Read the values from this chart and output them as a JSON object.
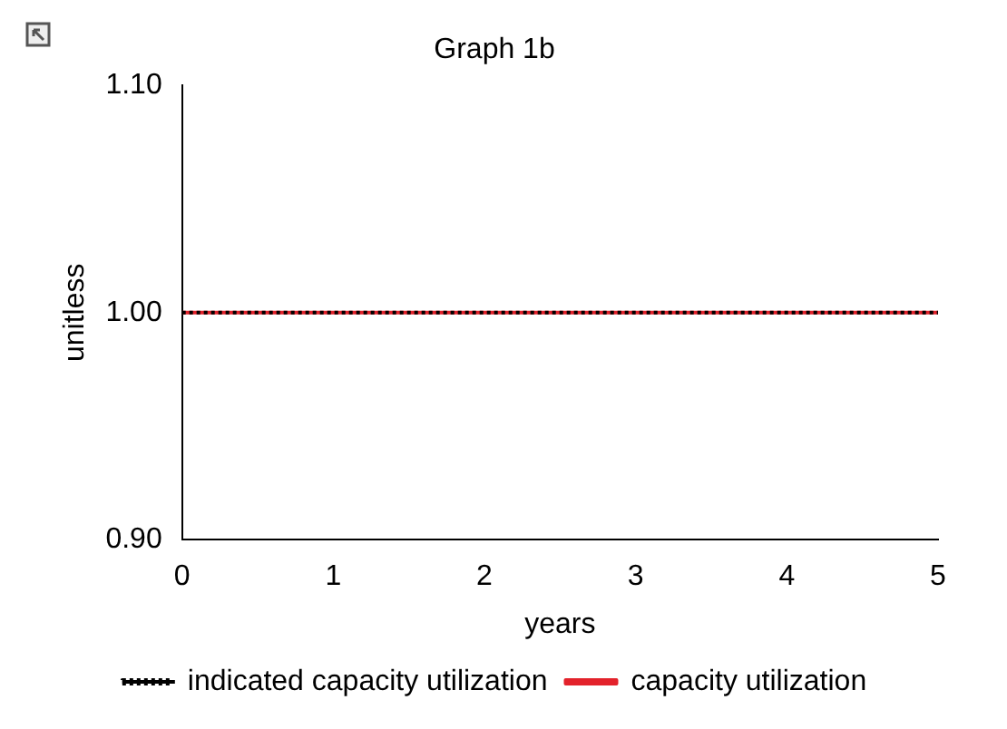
{
  "chart_data": {
    "type": "line",
    "title": "Graph 1b",
    "xlabel": "years",
    "ylabel": "unitless",
    "x": [
      0,
      5
    ],
    "series": [
      {
        "name": "indicated capacity utilization",
        "color": "#000000",
        "values": [
          1.0,
          1.0
        ],
        "line_style": "dotted"
      },
      {
        "name": "capacity utilization",
        "color": "#e3222b",
        "values": [
          1.0,
          1.0
        ],
        "line_style": "solid"
      }
    ],
    "xlim": [
      0,
      5
    ],
    "xticks": [
      0,
      1,
      2,
      3,
      4,
      5
    ],
    "ylim": [
      0.9,
      1.1
    ],
    "yticks": [
      {
        "value": 0.9,
        "label": "0.90"
      },
      {
        "value": 1.0,
        "label": "1.00"
      },
      {
        "value": 1.1,
        "label": "1.10"
      }
    ],
    "grid": false,
    "legend": "bottom",
    "marker": "none"
  }
}
